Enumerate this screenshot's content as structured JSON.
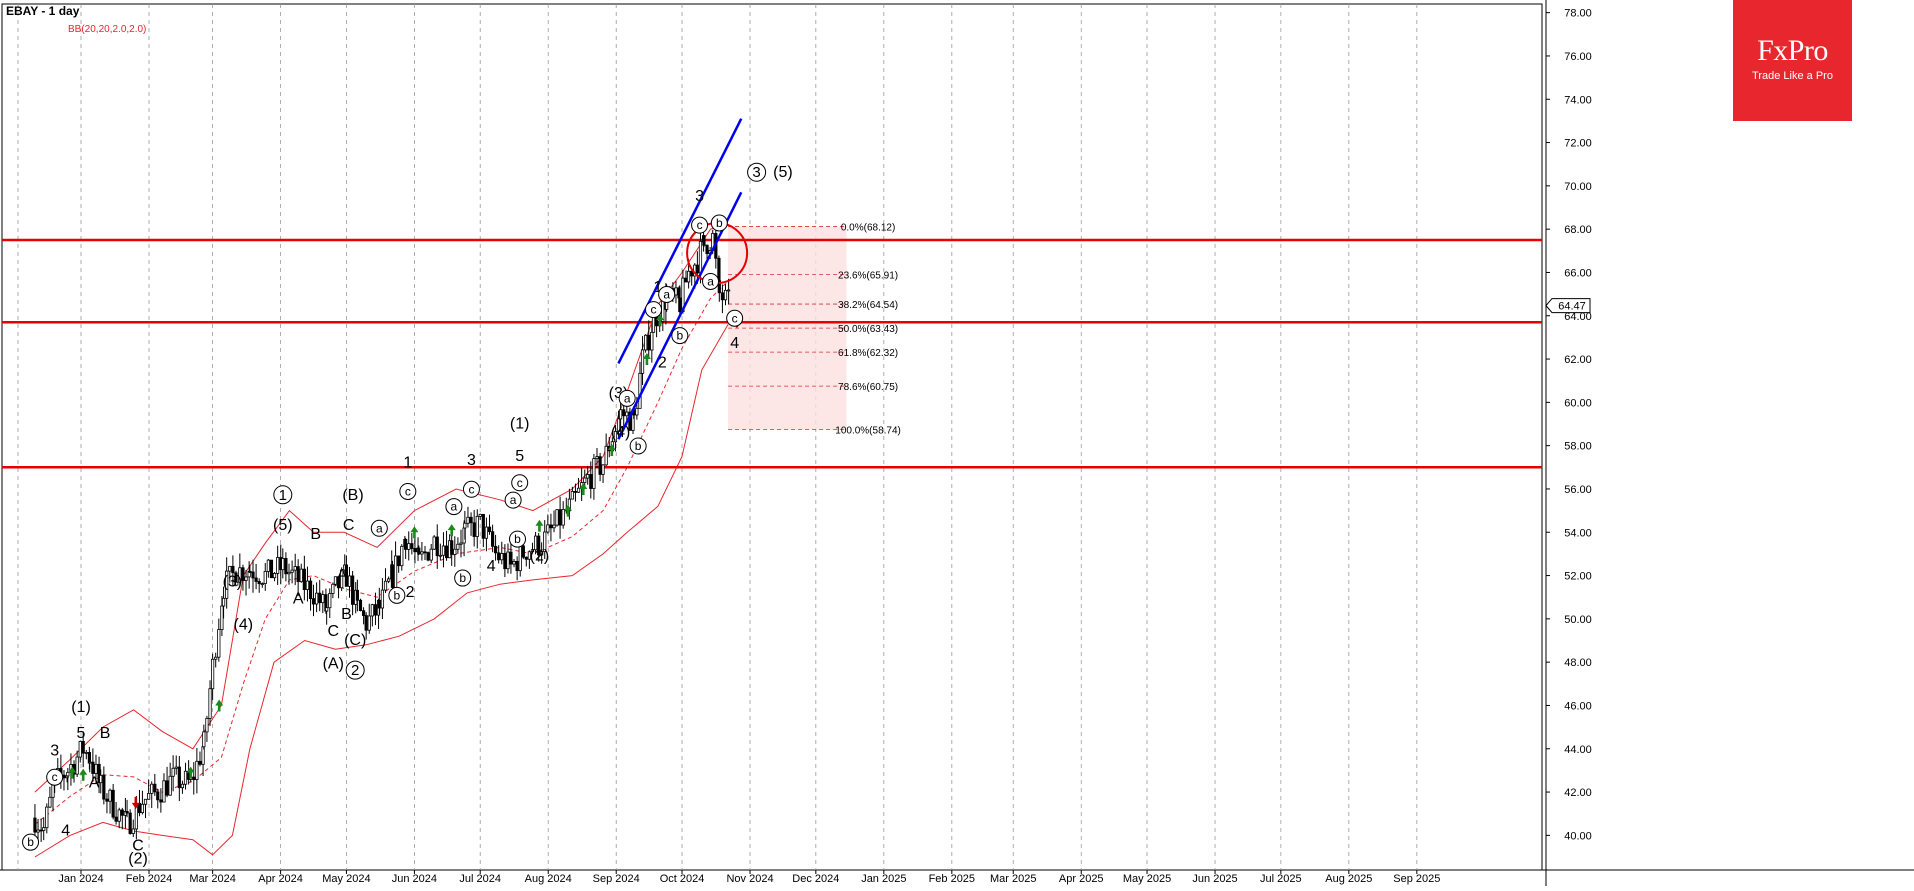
{
  "header": {
    "title": "EBAY - 1 day",
    "indicator": "BB(20,20,2.0,2.0)"
  },
  "logo": {
    "brand": "FxPro",
    "tagline": "Trade Like a Pro"
  },
  "colors": {
    "background": "#ffffff",
    "grid": "#9a9a9a",
    "price": "#000000",
    "bands": "#e8262e",
    "levels": "#e60000",
    "channel": "#0000ee",
    "arrows": "#1a8a1a",
    "fib": "#d83030",
    "fib_fill": "#fbe0e0"
  },
  "chart_data": {
    "type": "candlestick",
    "symbol": "EBAY",
    "timeframe": "1 day",
    "ylim": [
      38.4,
      78.4
    ],
    "y_ticks": [
      "40.00",
      "42.00",
      "44.00",
      "46.00",
      "48.00",
      "50.00",
      "52.00",
      "54.00",
      "56.00",
      "58.00",
      "60.00",
      "62.00",
      "64.00",
      "66.00",
      "68.00",
      "70.00",
      "72.00",
      "74.00",
      "76.00",
      "78.00"
    ],
    "x_ticks": [
      "Jan 2024",
      "Feb 2024",
      "Mar 2024",
      "Apr 2024",
      "May 2024",
      "Jun 2024",
      "Jul 2024",
      "Aug 2024",
      "Sep 2024",
      "Oct 2024",
      "Nov 2024",
      "Dec 2024",
      "Jan 2025",
      "Feb 2025",
      "Mar 2025",
      "Apr 2025",
      "May 2025",
      "Jun 2025",
      "Jul 2025",
      "Aug 2025",
      "Sep 2025"
    ],
    "current_price": "64.47",
    "horizontal_levels": [
      67.5,
      63.7,
      57.0
    ],
    "fibonacci": [
      {
        "label": "0.0%(68.12)",
        "value": 68.12
      },
      {
        "label": "23.6%(65.91)",
        "value": 65.91
      },
      {
        "label": "38.2%(64.54)",
        "value": 64.54
      },
      {
        "label": "50.0%(63.43)",
        "value": 63.43
      },
      {
        "label": "61.8%(62.32)",
        "value": 62.32
      },
      {
        "label": "78.6%(60.75)",
        "value": 60.75
      },
      {
        "label": "100.0%(58.74)",
        "value": 58.74
      }
    ],
    "price_path": [
      [
        "2023-12-11",
        40.8
      ],
      [
        "2023-12-15",
        40.3
      ],
      [
        "2023-12-20",
        42.4
      ],
      [
        "2023-12-26",
        43.0
      ],
      [
        "2024-01-02",
        44.0
      ],
      [
        "2024-01-05",
        43.6
      ],
      [
        "2024-01-10",
        42.2
      ],
      [
        "2024-01-17",
        41.2
      ],
      [
        "2024-01-22",
        40.5
      ],
      [
        "2024-01-29",
        41.6
      ],
      [
        "2024-02-05",
        42.0
      ],
      [
        "2024-02-12",
        42.6
      ],
      [
        "2024-02-20",
        42.4
      ],
      [
        "2024-02-26",
        44.2
      ],
      [
        "2024-03-01",
        47.8
      ],
      [
        "2024-03-06",
        51.5
      ],
      [
        "2024-03-12",
        52.2
      ],
      [
        "2024-03-18",
        52.3
      ],
      [
        "2024-03-25",
        52.0
      ],
      [
        "2024-04-02",
        52.4
      ],
      [
        "2024-04-09",
        51.8
      ],
      [
        "2024-04-16",
        51.2
      ],
      [
        "2024-04-22",
        50.4
      ],
      [
        "2024-04-26",
        51.4
      ],
      [
        "2024-05-01",
        52.0
      ],
      [
        "2024-05-06",
        50.5
      ],
      [
        "2024-05-10",
        49.8
      ],
      [
        "2024-05-16",
        50.5
      ],
      [
        "2024-05-22",
        52.0
      ],
      [
        "2024-05-28",
        53.8
      ],
      [
        "2024-06-03",
        52.6
      ],
      [
        "2024-06-10",
        53.6
      ],
      [
        "2024-06-18",
        53.4
      ],
      [
        "2024-06-24",
        54.0
      ],
      [
        "2024-07-01",
        54.4
      ],
      [
        "2024-07-08",
        53.0
      ],
      [
        "2024-07-15",
        52.4
      ],
      [
        "2024-07-22",
        53.2
      ],
      [
        "2024-07-29",
        53.5
      ],
      [
        "2024-08-05",
        54.4
      ],
      [
        "2024-08-12",
        55.3
      ],
      [
        "2024-08-19",
        56.5
      ],
      [
        "2024-08-26",
        57.2
      ],
      [
        "2024-09-03",
        59.5
      ],
      [
        "2024-09-09",
        59.2
      ],
      [
        "2024-09-13",
        62.0
      ],
      [
        "2024-09-18",
        63.8
      ],
      [
        "2024-09-24",
        64.8
      ],
      [
        "2024-09-30",
        64.6
      ],
      [
        "2024-10-04",
        66.0
      ],
      [
        "2024-10-08",
        66.6
      ],
      [
        "2024-10-11",
        67.3
      ],
      [
        "2024-10-15",
        67.6
      ],
      [
        "2024-10-18",
        65.0
      ],
      [
        "2024-10-23",
        64.5
      ]
    ],
    "upper_band": [
      [
        "2023-12-11",
        42.0
      ],
      [
        "2023-12-27",
        43.5
      ],
      [
        "2024-01-11",
        45.0
      ],
      [
        "2024-01-25",
        45.8
      ],
      [
        "2024-02-07",
        44.8
      ],
      [
        "2024-02-21",
        44.0
      ],
      [
        "2024-03-05",
        46.0
      ],
      [
        "2024-03-15",
        52.0
      ],
      [
        "2024-03-25",
        53.5
      ],
      [
        "2024-04-05",
        55.0
      ],
      [
        "2024-04-16",
        54.0
      ],
      [
        "2024-04-30",
        54.0
      ],
      [
        "2024-05-15",
        53.3
      ],
      [
        "2024-06-01",
        55.0
      ],
      [
        "2024-06-20",
        56.0
      ],
      [
        "2024-07-10",
        55.5
      ],
      [
        "2024-07-25",
        55.0
      ],
      [
        "2024-08-12",
        56.0
      ],
      [
        "2024-08-26",
        57.5
      ],
      [
        "2024-09-06",
        60.5
      ],
      [
        "2024-09-20",
        64.5
      ],
      [
        "2024-10-01",
        66.0
      ],
      [
        "2024-10-14",
        68.0
      ],
      [
        "2024-10-22",
        68.3
      ]
    ],
    "middle_band": [
      [
        "2023-12-11",
        40.5
      ],
      [
        "2023-12-27",
        41.8
      ],
      [
        "2024-01-11",
        42.8
      ],
      [
        "2024-01-25",
        42.7
      ],
      [
        "2024-02-07",
        42.0
      ],
      [
        "2024-02-21",
        42.5
      ],
      [
        "2024-03-05",
        43.6
      ],
      [
        "2024-03-15",
        47.0
      ],
      [
        "2024-03-25",
        50.0
      ],
      [
        "2024-04-05",
        51.8
      ],
      [
        "2024-04-16",
        52.0
      ],
      [
        "2024-04-30",
        51.4
      ],
      [
        "2024-05-15",
        51.0
      ],
      [
        "2024-06-01",
        52.2
      ],
      [
        "2024-06-20",
        53.0
      ],
      [
        "2024-07-10",
        53.3
      ],
      [
        "2024-07-25",
        53.0
      ],
      [
        "2024-08-12",
        53.8
      ],
      [
        "2024-08-26",
        55.0
      ],
      [
        "2024-09-06",
        57.0
      ],
      [
        "2024-09-20",
        60.0
      ],
      [
        "2024-10-01",
        62.5
      ],
      [
        "2024-10-14",
        64.8
      ],
      [
        "2024-10-22",
        65.6
      ]
    ],
    "lower_band": [
      [
        "2023-12-11",
        39.0
      ],
      [
        "2023-12-27",
        40.0
      ],
      [
        "2024-01-11",
        40.6
      ],
      [
        "2024-01-25",
        40.2
      ],
      [
        "2024-02-07",
        40.0
      ],
      [
        "2024-02-21",
        39.8
      ],
      [
        "2024-03-01",
        39.1
      ],
      [
        "2024-03-10",
        40.0
      ],
      [
        "2024-03-18",
        44.0
      ],
      [
        "2024-03-29",
        48.0
      ],
      [
        "2024-04-12",
        49.0
      ],
      [
        "2024-04-26",
        48.6
      ],
      [
        "2024-05-10",
        48.8
      ],
      [
        "2024-05-25",
        49.2
      ],
      [
        "2024-06-10",
        50.0
      ],
      [
        "2024-06-25",
        51.2
      ],
      [
        "2024-07-10",
        51.6
      ],
      [
        "2024-07-25",
        51.8
      ],
      [
        "2024-08-12",
        52.0
      ],
      [
        "2024-08-26",
        53.0
      ],
      [
        "2024-09-06",
        54.0
      ],
      [
        "2024-09-20",
        55.2
      ],
      [
        "2024-10-01",
        57.5
      ],
      [
        "2024-10-10",
        61.5
      ],
      [
        "2024-10-22",
        63.6
      ]
    ],
    "channel_lines": [
      [
        [
          "2024-09-02",
          61.8
        ],
        [
          "2024-10-28",
          73.1
        ]
      ],
      [
        [
          "2024-09-02",
          58.3
        ],
        [
          "2024-10-28",
          69.7
        ]
      ]
    ],
    "circle": {
      "x": "2024-10-17",
      "y": 66.9
    },
    "buy_arrows": [
      [
        "2023-12-28",
        42.9
      ],
      [
        "2024-01-02",
        42.8
      ],
      [
        "2024-02-20",
        42.9
      ],
      [
        "2024-03-04",
        46.0
      ],
      [
        "2024-06-01",
        54.0
      ],
      [
        "2024-06-18",
        54.1
      ],
      [
        "2024-07-28",
        54.3
      ],
      [
        "2024-08-10",
        55.0
      ],
      [
        "2024-08-17",
        56.0
      ],
      [
        "2024-08-30",
        57.8
      ],
      [
        "2024-09-15",
        62.0
      ],
      [
        "2024-09-21",
        63.8
      ]
    ],
    "sell_arrows": [
      [
        "2024-01-26",
        41.5
      ],
      [
        "2024-10-26",
        63.7
      ]
    ],
    "wave_labels": [
      {
        "text": "(1)",
        "x": "2024-01-01",
        "y": 45.7
      },
      {
        "text": "5",
        "x": "2024-01-01",
        "y": 44.5
      },
      {
        "text": "B",
        "x": "2024-01-12",
        "y": 44.5
      },
      {
        "text": "3",
        "x": "2023-12-20",
        "y": 43.7
      },
      {
        "text": "c",
        "x": "2023-12-20",
        "y": 42.5,
        "circled": true
      },
      {
        "text": "A",
        "x": "2024-01-07",
        "y": 42.2
      },
      {
        "text": "4",
        "x": "2023-12-25",
        "y": 40.0
      },
      {
        "text": "b",
        "x": "2023-12-09",
        "y": 39.5,
        "circled": true
      },
      {
        "text": "C",
        "x": "2024-01-27",
        "y": 39.3
      },
      {
        "text": "(2)",
        "x": "2024-01-27",
        "y": 38.7
      },
      {
        "text": "(3)",
        "x": "2024-03-10",
        "y": 51.5
      },
      {
        "text": "(4)",
        "x": "2024-03-15",
        "y": 49.5
      },
      {
        "text": "1",
        "x": "2024-04-02",
        "y": 55.5,
        "circled": true
      },
      {
        "text": "(5)",
        "x": "2024-04-02",
        "y": 54.1
      },
      {
        "text": "B",
        "x": "2024-04-17",
        "y": 53.7
      },
      {
        "text": "A",
        "x": "2024-04-09",
        "y": 50.7
      },
      {
        "text": "C",
        "x": "2024-04-25",
        "y": 49.2
      },
      {
        "text": "(A)",
        "x": "2024-04-25",
        "y": 47.7
      },
      {
        "text": "(B)",
        "x": "2024-05-04",
        "y": 55.5
      },
      {
        "text": "C",
        "x": "2024-05-02",
        "y": 54.1
      },
      {
        "text": "A",
        "x": "2024-04-29",
        "y": 51.8
      },
      {
        "text": "B",
        "x": "2024-05-01",
        "y": 50.0
      },
      {
        "text": "(C)",
        "x": "2024-05-05",
        "y": 48.8
      },
      {
        "text": "2",
        "x": "2024-05-05",
        "y": 47.4,
        "circled": true
      },
      {
        "text": "a",
        "x": "2024-05-16",
        "y": 54.0,
        "circled": true
      },
      {
        "text": "b",
        "x": "2024-05-24",
        "y": 50.9,
        "circled": true
      },
      {
        "text": "2",
        "x": "2024-05-30",
        "y": 51.0
      },
      {
        "text": "1",
        "x": "2024-05-29",
        "y": 57.0
      },
      {
        "text": "c",
        "x": "2024-05-29",
        "y": 55.7,
        "circled": true
      },
      {
        "text": "a",
        "x": "2024-06-19",
        "y": 55.0,
        "circled": true
      },
      {
        "text": "3",
        "x": "2024-06-27",
        "y": 57.1
      },
      {
        "text": "c",
        "x": "2024-06-27",
        "y": 55.8,
        "circled": true
      },
      {
        "text": "b",
        "x": "2024-06-23",
        "y": 51.7,
        "circled": true
      },
      {
        "text": "4",
        "x": "2024-07-06",
        "y": 52.2
      },
      {
        "text": "(1)",
        "x": "2024-07-19",
        "y": 58.8
      },
      {
        "text": "5",
        "x": "2024-07-19",
        "y": 57.3
      },
      {
        "text": "c",
        "x": "2024-07-19",
        "y": 56.1,
        "circled": true
      },
      {
        "text": "a",
        "x": "2024-07-16",
        "y": 55.3,
        "circled": true
      },
      {
        "text": "b",
        "x": "2024-07-18",
        "y": 53.5,
        "circled": true
      },
      {
        "text": "(2)",
        "x": "2024-07-28",
        "y": 52.7
      },
      {
        "text": "(3)",
        "x": "2024-09-02",
        "y": 60.2
      },
      {
        "text": "a",
        "x": "2024-09-06",
        "y": 60.0,
        "circled": true
      },
      {
        "text": "(4)",
        "x": "2024-09-03",
        "y": 58.4
      },
      {
        "text": "b",
        "x": "2024-09-11",
        "y": 57.8,
        "circled": true
      },
      {
        "text": "1",
        "x": "2024-09-20",
        "y": 65.1
      },
      {
        "text": "c",
        "x": "2024-09-18",
        "y": 64.1,
        "circled": true
      },
      {
        "text": "a",
        "x": "2024-09-24",
        "y": 64.8,
        "circled": true
      },
      {
        "text": "2",
        "x": "2024-09-22",
        "y": 61.6
      },
      {
        "text": "b",
        "x": "2024-09-30",
        "y": 62.9,
        "circled": true
      },
      {
        "text": "3",
        "x": "2024-10-09",
        "y": 69.3
      },
      {
        "text": "c",
        "x": "2024-10-09",
        "y": 68.0,
        "circled": true
      },
      {
        "text": "b",
        "x": "2024-10-18",
        "y": 68.1,
        "circled": true
      },
      {
        "text": "a",
        "x": "2024-10-14",
        "y": 65.4,
        "circled": true
      },
      {
        "text": "c",
        "x": "2024-10-25",
        "y": 63.7,
        "circled": true
      },
      {
        "text": "4",
        "x": "2024-10-25",
        "y": 62.5
      },
      {
        "text": "3",
        "x": "2024-11-04",
        "y": 70.4,
        "circled": true
      },
      {
        "text": "(5)",
        "x": "2024-11-16",
        "y": 70.4
      }
    ]
  }
}
